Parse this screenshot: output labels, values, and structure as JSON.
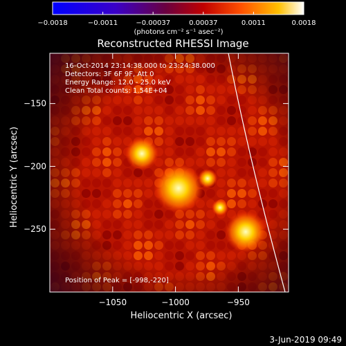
{
  "colorbar": {
    "tick_labels": [
      "−0.0018",
      "−0.0011",
      "−0.00037",
      "0.00037",
      "0.0011",
      "0.0018"
    ],
    "units_text": "(photons cm⁻² s⁻¹ asec⁻²)"
  },
  "title": "Reconstructed RHESSI Image",
  "info": {
    "line1": "16-Oct-2014 23:14:38.000 to 23:24:38.000",
    "line2": "Detectors: 3F 6F 9F, Att 0",
    "line3": "Energy Range: 12.0 - 25.0 keV",
    "line4": "Clean     Total counts: 1.54E+04",
    "peak": "Position of Peak = [-998,-220]"
  },
  "axes": {
    "xlabel": "Heliocentric X (arcsec)",
    "ylabel": "Heliocentric Y (arcsec)",
    "xlim": [
      -1100,
      -910
    ],
    "ylim": [
      -300,
      -110
    ],
    "xticks": [
      {
        "v": -1050,
        "label": "−1050"
      },
      {
        "v": -1000,
        "label": "−1000"
      },
      {
        "v": -950,
        "label": "−950"
      }
    ],
    "yticks": [
      {
        "v": -150,
        "label": "−150"
      },
      {
        "v": -200,
        "label": "−200"
      },
      {
        "v": -250,
        "label": "−250"
      }
    ]
  },
  "footer_date": "3-Jun-2019 09:49"
}
